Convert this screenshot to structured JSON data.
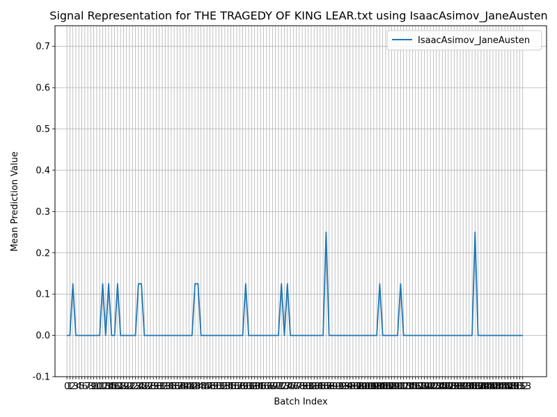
{
  "chart_data": {
    "type": "line",
    "title": "Signal Representation for THE TRAGEDY OF KING LEAR.txt using IsaacAsimov_JaneAusten",
    "xlabel": "Batch Index",
    "ylabel": "Mean Prediction Value",
    "xlim": [
      -4,
      161
    ],
    "ylim": [
      -0.1,
      0.75
    ],
    "yticks": [
      -0.1,
      0.0,
      0.1,
      0.2,
      0.3,
      0.4,
      0.5,
      0.6,
      0.7
    ],
    "grid": true,
    "legend": "top-right",
    "x_count": 154,
    "series": [
      {
        "name": "IsaacAsimov_JaneAusten",
        "color": "#1f77b4",
        "points": [
          [
            0,
            0
          ],
          [
            1,
            0
          ],
          [
            2,
            0.125
          ],
          [
            3,
            0
          ],
          [
            11,
            0
          ],
          [
            12,
            0.125
          ],
          [
            13,
            0
          ],
          [
            14,
            0.125
          ],
          [
            15,
            0
          ],
          [
            16,
            0
          ],
          [
            17,
            0.125
          ],
          [
            18,
            0
          ],
          [
            23,
            0
          ],
          [
            24,
            0.125
          ],
          [
            25,
            0.125
          ],
          [
            26,
            0
          ],
          [
            42,
            0
          ],
          [
            43,
            0.125
          ],
          [
            44,
            0.125
          ],
          [
            45,
            0
          ],
          [
            59,
            0
          ],
          [
            60,
            0.125
          ],
          [
            61,
            0
          ],
          [
            71,
            0
          ],
          [
            72,
            0.125
          ],
          [
            73,
            0
          ],
          [
            74,
            0.125
          ],
          [
            75,
            0
          ],
          [
            86,
            0
          ],
          [
            87,
            0.25
          ],
          [
            88,
            0
          ],
          [
            104,
            0
          ],
          [
            105,
            0.125
          ],
          [
            106,
            0
          ],
          [
            111,
            0
          ],
          [
            112,
            0.125
          ],
          [
            113,
            0
          ],
          [
            136,
            0
          ],
          [
            137,
            0.25
          ],
          [
            138,
            0
          ],
          [
            153,
            0
          ]
        ]
      }
    ]
  }
}
